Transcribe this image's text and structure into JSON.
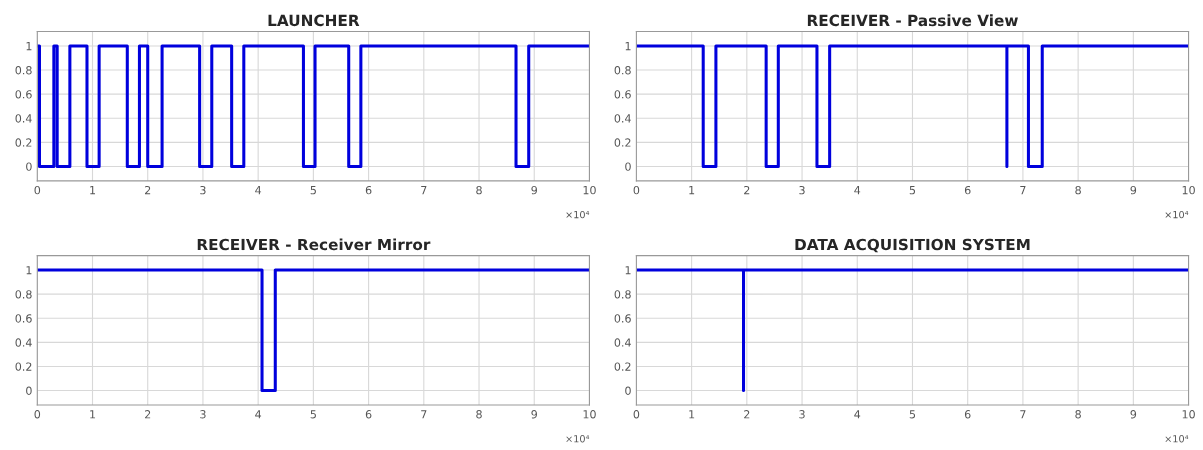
{
  "chart_data": [
    {
      "type": "step",
      "title": "LAUNCHER",
      "x": [
        0,
        0.04,
        0.3,
        0.36,
        0.59,
        0.9,
        1.12,
        1.63,
        1.85,
        2.0,
        2.26,
        2.94,
        3.16,
        3.52,
        3.74,
        4.82,
        5.03,
        5.64,
        5.86,
        8.67,
        8.9,
        10
      ],
      "series": [
        {
          "color": "#0000dd",
          "values": [
            1,
            0,
            1,
            0,
            1,
            0,
            1,
            0,
            1,
            0,
            1,
            0,
            1,
            0,
            1,
            0,
            1,
            0,
            1,
            0,
            1,
            1
          ]
        }
      ],
      "xlim": [
        0,
        10
      ],
      "xticks": [
        0,
        1,
        2,
        3,
        4,
        5,
        6,
        7,
        8,
        9,
        10
      ],
      "ylim": [
        -0.12,
        1.12
      ],
      "yticks": [
        0,
        0.2,
        0.4,
        0.6,
        0.8,
        1
      ],
      "grid": true,
      "annotations": [
        "×10⁴"
      ]
    },
    {
      "type": "step",
      "title": "RECEIVER - Passive View",
      "x": [
        0,
        1.21,
        1.44,
        2.35,
        2.57,
        3.27,
        3.5,
        6.71,
        6.71,
        7.1,
        7.35,
        10
      ],
      "series": [
        {
          "color": "#0000dd",
          "values": [
            1,
            0,
            1,
            0,
            1,
            0,
            1,
            0,
            1,
            0,
            1,
            1
          ]
        }
      ],
      "xlim": [
        0,
        10
      ],
      "xticks": [
        0,
        1,
        2,
        3,
        4,
        5,
        6,
        7,
        8,
        9,
        10
      ],
      "ylim": [
        -0.12,
        1.12
      ],
      "yticks": [
        0,
        0.2,
        0.4,
        0.6,
        0.8,
        1
      ],
      "grid": true,
      "annotations": [
        "×10⁴"
      ]
    },
    {
      "type": "step",
      "title": "RECEIVER - Receiver Mirror",
      "x": [
        0,
        4.07,
        4.31,
        10
      ],
      "series": [
        {
          "color": "#0000dd",
          "values": [
            1,
            0,
            1,
            1
          ]
        }
      ],
      "xlim": [
        0,
        10
      ],
      "xticks": [
        0,
        1,
        2,
        3,
        4,
        5,
        6,
        7,
        8,
        9,
        10
      ],
      "ylim": [
        -0.12,
        1.12
      ],
      "yticks": [
        0,
        0.2,
        0.4,
        0.6,
        0.8,
        1
      ],
      "grid": true,
      "annotations": [
        "×10⁴"
      ]
    },
    {
      "type": "step",
      "title": "DATA ACQUISITION SYSTEM",
      "x": [
        0,
        1.94,
        1.94,
        10
      ],
      "series": [
        {
          "color": "#0000dd",
          "values": [
            1,
            0,
            1,
            1
          ]
        }
      ],
      "xlim": [
        0,
        10
      ],
      "xticks": [
        0,
        1,
        2,
        3,
        4,
        5,
        6,
        7,
        8,
        9,
        10
      ],
      "ylim": [
        -0.12,
        1.12
      ],
      "yticks": [
        0,
        0.2,
        0.4,
        0.6,
        0.8,
        1
      ],
      "grid": true,
      "annotations": [
        "×10⁴"
      ]
    }
  ]
}
